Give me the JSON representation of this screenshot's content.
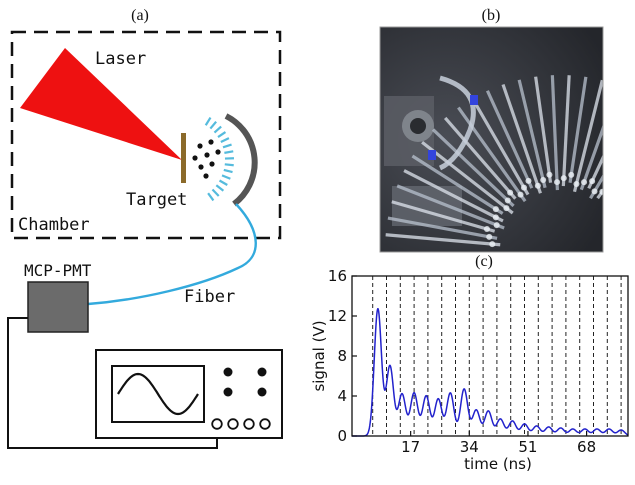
{
  "panels": {
    "a": {
      "label": "(a)",
      "labels": {
        "laser": "Laser",
        "target": "Target",
        "chamber": "Chamber",
        "fiber": "Fiber",
        "detector": "MCP-PMT"
      },
      "colors": {
        "laser": "#ee1111",
        "fiber": "#33aadd",
        "detector": "#6b6b6b",
        "target": "#8b6a2a",
        "mirror": "#555555",
        "fibers": "#55bbdd"
      }
    },
    "b": {
      "label": "(b)",
      "photo_description": "photograph of curved fiber-optic delay array",
      "colors": {
        "background": "#3a3d44"
      }
    },
    "c": {
      "label": "(c)"
    }
  },
  "chart_data": {
    "type": "line",
    "xlabel": "time (ns)",
    "ylabel": "signal (V)",
    "xlim": [
      0,
      80
    ],
    "ylim": [
      0,
      16
    ],
    "xticks": [
      17,
      34,
      51,
      68
    ],
    "yticks": [
      0,
      4,
      8,
      12,
      16
    ],
    "dashed_gridlines_x": [
      6,
      10,
      14,
      18,
      22,
      26,
      30,
      34,
      38,
      42,
      46,
      50,
      54,
      58,
      62,
      66,
      70,
      74,
      78
    ],
    "series": [
      {
        "color": "#2222cc",
        "peaks": [
          {
            "x": 7.5,
            "y": 12.7
          },
          {
            "x": 11,
            "y": 7.0
          },
          {
            "x": 14.5,
            "y": 4.2
          },
          {
            "x": 18,
            "y": 4.3
          },
          {
            "x": 21.5,
            "y": 4.0
          },
          {
            "x": 25,
            "y": 3.7
          },
          {
            "x": 28.5,
            "y": 4.3
          },
          {
            "x": 32.5,
            "y": 4.7
          },
          {
            "x": 36,
            "y": 2.6
          },
          {
            "x": 39.5,
            "y": 2.5
          },
          {
            "x": 43,
            "y": 1.7
          },
          {
            "x": 46.5,
            "y": 1.5
          },
          {
            "x": 50,
            "y": 1.2
          },
          {
            "x": 53.5,
            "y": 1.0
          },
          {
            "x": 57,
            "y": 0.9
          },
          {
            "x": 60.5,
            "y": 0.8
          },
          {
            "x": 64,
            "y": 0.7
          },
          {
            "x": 67.5,
            "y": 0.7
          },
          {
            "x": 71,
            "y": 0.7
          },
          {
            "x": 74.5,
            "y": 0.7
          },
          {
            "x": 78,
            "y": 0.6
          }
        ]
      }
    ]
  }
}
